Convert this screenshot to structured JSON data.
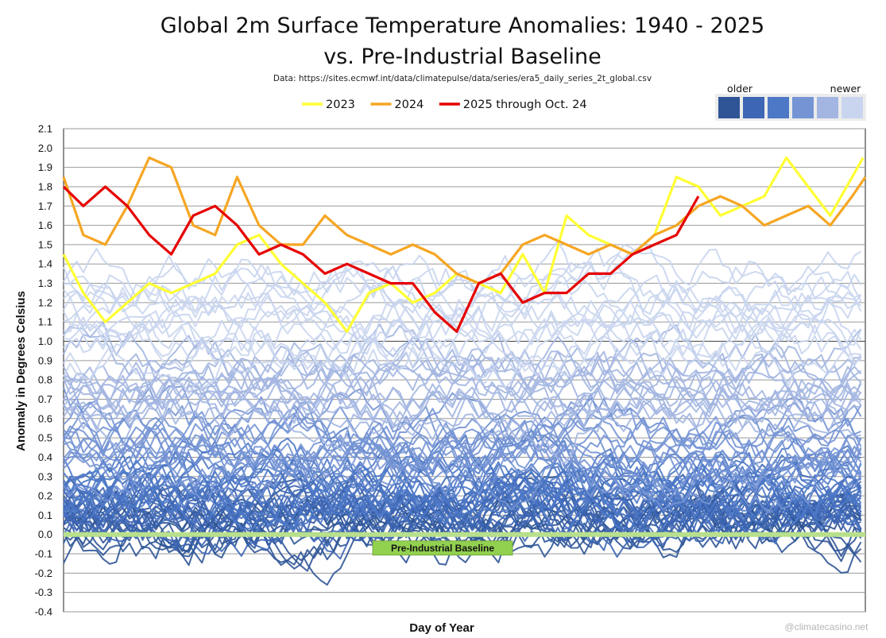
{
  "chart_data": {
    "type": "line",
    "title_line1": "Global 2m Surface Temperature Anomalies: 1940 - 2025",
    "title_line2": "vs. Pre-Industrial Baseline",
    "subtitle": "Data: https://sites.ecmwf.int/data/climatepulse/data/series/era5_daily_series_2t_global.csv",
    "xlabel": "Day of Year",
    "ylabel": "Anomaly in Degrees Celsius",
    "ylim": [
      -0.4,
      2.1
    ],
    "xlim": [
      1,
      366
    ],
    "yticks": [
      "2.1",
      "2.0",
      "1.9",
      "1.8",
      "1.7",
      "1.6",
      "1.5",
      "1.4",
      "1.3",
      "1.2",
      "1.1",
      "1.0",
      "0.9",
      "0.8",
      "0.7",
      "0.6",
      "0.5",
      "0.4",
      "0.3",
      "0.2",
      "0.1",
      "0.0",
      "-0.1",
      "-0.2",
      "-0.3",
      "-0.4"
    ],
    "grid": true,
    "legend_position": "top",
    "legend": [
      {
        "label": "2023",
        "color": "#FFFF33"
      },
      {
        "label": "2024",
        "color": "#F5A623"
      },
      {
        "label": "2025 through Oct. 24",
        "color": "#E60000"
      }
    ],
    "color_scale": {
      "older_label": "older",
      "newer_label": "newer",
      "colors": [
        "#2F5597",
        "#3D66B5",
        "#4D78C6",
        "#7494D4",
        "#A3B6E1",
        "#C9D5EE"
      ]
    },
    "baseline": {
      "label": "Pre-Industrial Baseline",
      "value": 0.0,
      "color": "#92D050"
    },
    "series": [
      {
        "name": "2023",
        "color": "#FFFF33",
        "x": [
          1,
          10,
          20,
          30,
          40,
          50,
          60,
          70,
          80,
          90,
          100,
          110,
          120,
          130,
          140,
          150,
          160,
          170,
          180,
          190,
          200,
          210,
          220,
          230,
          240,
          250,
          260,
          270,
          280,
          290,
          300,
          310,
          320,
          330,
          340,
          350,
          360,
          365
        ],
        "values": [
          1.45,
          1.25,
          1.1,
          1.2,
          1.3,
          1.25,
          1.3,
          1.35,
          1.5,
          1.55,
          1.4,
          1.3,
          1.2,
          1.05,
          1.25,
          1.3,
          1.2,
          1.25,
          1.35,
          1.3,
          1.25,
          1.45,
          1.25,
          1.65,
          1.55,
          1.5,
          1.45,
          1.55,
          1.85,
          1.8,
          1.65,
          1.7,
          1.75,
          1.95,
          1.8,
          1.65,
          1.85,
          1.95
        ]
      },
      {
        "name": "2024",
        "color": "#F5A623",
        "x": [
          1,
          10,
          20,
          30,
          40,
          50,
          60,
          70,
          80,
          90,
          100,
          110,
          120,
          130,
          140,
          150,
          160,
          170,
          180,
          190,
          200,
          210,
          220,
          230,
          240,
          250,
          260,
          270,
          280,
          290,
          300,
          310,
          320,
          330,
          340,
          350,
          360,
          366
        ],
        "values": [
          1.85,
          1.55,
          1.5,
          1.7,
          1.95,
          1.9,
          1.6,
          1.55,
          1.85,
          1.6,
          1.5,
          1.5,
          1.65,
          1.55,
          1.5,
          1.45,
          1.5,
          1.45,
          1.35,
          1.3,
          1.35,
          1.5,
          1.55,
          1.5,
          1.45,
          1.5,
          1.45,
          1.55,
          1.6,
          1.7,
          1.75,
          1.7,
          1.6,
          1.65,
          1.7,
          1.6,
          1.75,
          1.85
        ]
      },
      {
        "name": "2025 through Oct. 24",
        "color": "#E60000",
        "x": [
          1,
          10,
          20,
          30,
          40,
          50,
          60,
          70,
          80,
          90,
          100,
          110,
          120,
          130,
          140,
          150,
          160,
          170,
          180,
          190,
          200,
          210,
          220,
          230,
          240,
          250,
          260,
          270,
          280,
          290
        ],
        "values": [
          1.8,
          1.7,
          1.8,
          1.7,
          1.55,
          1.45,
          1.65,
          1.7,
          1.6,
          1.45,
          1.5,
          1.45,
          1.35,
          1.4,
          1.35,
          1.3,
          1.3,
          1.15,
          1.05,
          1.3,
          1.35,
          1.2,
          1.25,
          1.25,
          1.35,
          1.35,
          1.45,
          1.5,
          1.55,
          1.75
        ]
      }
    ]
  },
  "watermark": "@climatecasino.net"
}
